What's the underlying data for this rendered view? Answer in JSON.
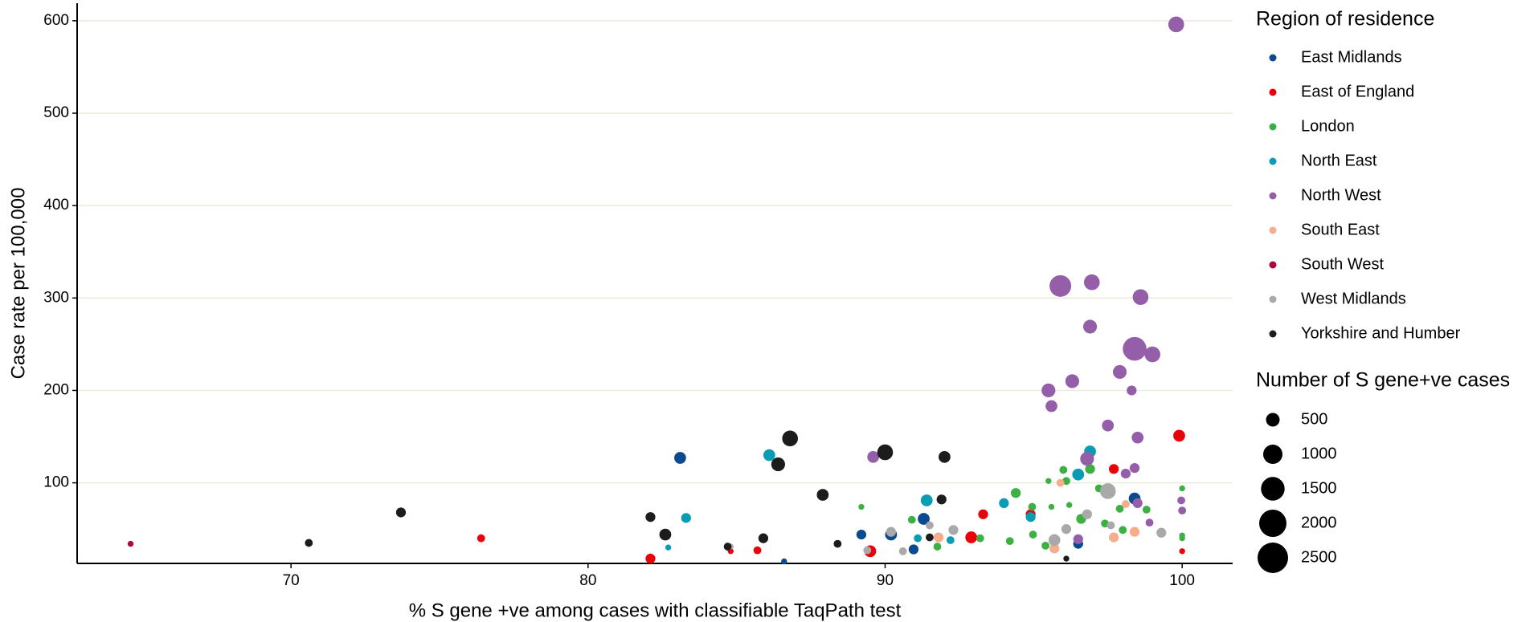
{
  "chart_data": {
    "type": "scatter",
    "x_label": "% S gene +ve among cases with classifiable TaqPath test",
    "y_label": "Case rate per 100,000",
    "xlim": [
      62.8,
      101.7
    ],
    "ylim": [
      12.8,
      619
    ],
    "xticks": [
      70,
      80,
      90,
      100
    ],
    "yticks": [
      100,
      200,
      300,
      400,
      500,
      600
    ],
    "grid": true,
    "legend_title": "Region of residence",
    "size_legend": {
      "title": "Number of S gene+ve cases",
      "values": [
        500,
        1000,
        1500,
        2000,
        2500
      ]
    },
    "series": [
      {
        "name": "East Midlands",
        "color": "#0b4a8f",
        "x": [
          83.1,
          98.4,
          91.3,
          89.2,
          90.2,
          90.96,
          96.5,
          86.6
        ],
        "y": [
          127,
          83,
          61,
          44,
          44,
          28,
          34,
          15
        ],
        "sizes": [
          375,
          375,
          375,
          260,
          375,
          260,
          260,
          94
        ]
      },
      {
        "name": "East of England",
        "color": "#e8000b",
        "x": [
          99.9,
          97.7,
          93.3,
          92.9,
          94.9,
          76.4,
          82.1,
          85.7,
          84.8,
          89.5,
          100
        ],
        "y": [
          151,
          115,
          66,
          41,
          66,
          40,
          18,
          27,
          26,
          26,
          26
        ],
        "sizes": [
          375,
          260,
          260,
          375,
          260,
          166,
          260,
          166,
          94,
          375,
          94
        ]
      },
      {
        "name": "London",
        "color": "#3cb043",
        "x": [
          96.9,
          96.0,
          95.5,
          96.1,
          94.4,
          97.2,
          100,
          89.2,
          94.95,
          95.6,
          96.2,
          97.9,
          98.8,
          90.9,
          96.6,
          97.4,
          98.0,
          94.98,
          94.2,
          93.2,
          91.76,
          95.4,
          100,
          100
        ],
        "y": [
          115,
          114,
          102,
          102,
          89,
          94,
          94,
          74,
          74,
          74,
          76,
          72,
          71,
          60,
          61,
          56,
          49,
          44,
          37,
          40,
          31,
          32,
          43,
          40
        ],
        "sizes": [
          260,
          166,
          94,
          166,
          260,
          166,
          94,
          94,
          166,
          94,
          94,
          166,
          166,
          166,
          260,
          166,
          166,
          166,
          166,
          166,
          166,
          166,
          94,
          94
        ]
      },
      {
        "name": "North East",
        "color": "#0a9bb5",
        "x": [
          86.1,
          96.9,
          96.5,
          91.4,
          94.0,
          83.3,
          94.9,
          91.1,
          92.2,
          82.7
        ],
        "y": [
          130,
          134,
          109,
          81,
          78,
          62,
          63,
          40,
          38,
          30
        ],
        "sizes": [
          375,
          375,
          375,
          375,
          260,
          260,
          260,
          166,
          166,
          94
        ]
      },
      {
        "name": "North West",
        "color": "#955ea8",
        "x": [
          99.8,
          95.9,
          96.96,
          98.6,
          96.9,
          98.4,
          99.0,
          97.9,
          96.3,
          95.5,
          98.3,
          95.6,
          97.5,
          98.5,
          89.6,
          96.8,
          98.4,
          98.1,
          98.5,
          99.97,
          100,
          98.9,
          96.5
        ],
        "y": [
          596,
          313,
          317,
          301,
          269,
          245,
          239,
          220,
          210,
          200,
          200,
          183,
          162,
          149,
          128,
          126,
          116,
          110,
          78,
          81,
          70,
          57,
          39
        ],
        "sizes": [
          666,
          1260,
          666,
          666,
          510,
          1500,
          666,
          510,
          510,
          510,
          260,
          375,
          375,
          375,
          375,
          510,
          260,
          260,
          260,
          166,
          166,
          166,
          260
        ]
      },
      {
        "name": "South East",
        "color": "#f6ad8c",
        "x": [
          95.9,
          98.1,
          98.4,
          91.8,
          97.7,
          95.7
        ],
        "y": [
          100,
          77,
          47,
          41,
          41,
          29
        ],
        "sizes": [
          166,
          166,
          260,
          260,
          260,
          260
        ]
      },
      {
        "name": "South West",
        "color": "#b0053c",
        "x": [
          64.6
        ],
        "y": [
          34
        ],
        "sizes": [
          94
        ]
      },
      {
        "name": "West Midlands",
        "color": "#a9a9a9",
        "x": [
          97.5,
          96.8,
          96.1,
          95.7,
          99.3,
          92.3,
          90.2,
          91.5,
          90.6,
          97.6,
          84.8,
          89.4
        ],
        "y": [
          91,
          66,
          50,
          38,
          46,
          49,
          47,
          54,
          26,
          54,
          31,
          27
        ],
        "sizes": [
          666,
          260,
          260,
          375,
          260,
          260,
          260,
          166,
          166,
          166,
          94,
          166
        ]
      },
      {
        "name": "Yorkshire and Humber",
        "color": "#1c1c1c",
        "x": [
          86.8,
          90.0,
          86.4,
          92.0,
          87.9,
          73.7,
          91.9,
          82.1,
          82.6,
          85.9,
          70.6,
          88.4,
          84.7,
          91.5,
          96.1
        ],
        "y": [
          148,
          133,
          120,
          128,
          87,
          68,
          82,
          63,
          44,
          40,
          35,
          34,
          31,
          41,
          18
        ],
        "sizes": [
          666,
          666,
          510,
          375,
          375,
          260,
          260,
          260,
          375,
          260,
          166,
          166,
          166,
          166,
          94
        ]
      }
    ]
  }
}
